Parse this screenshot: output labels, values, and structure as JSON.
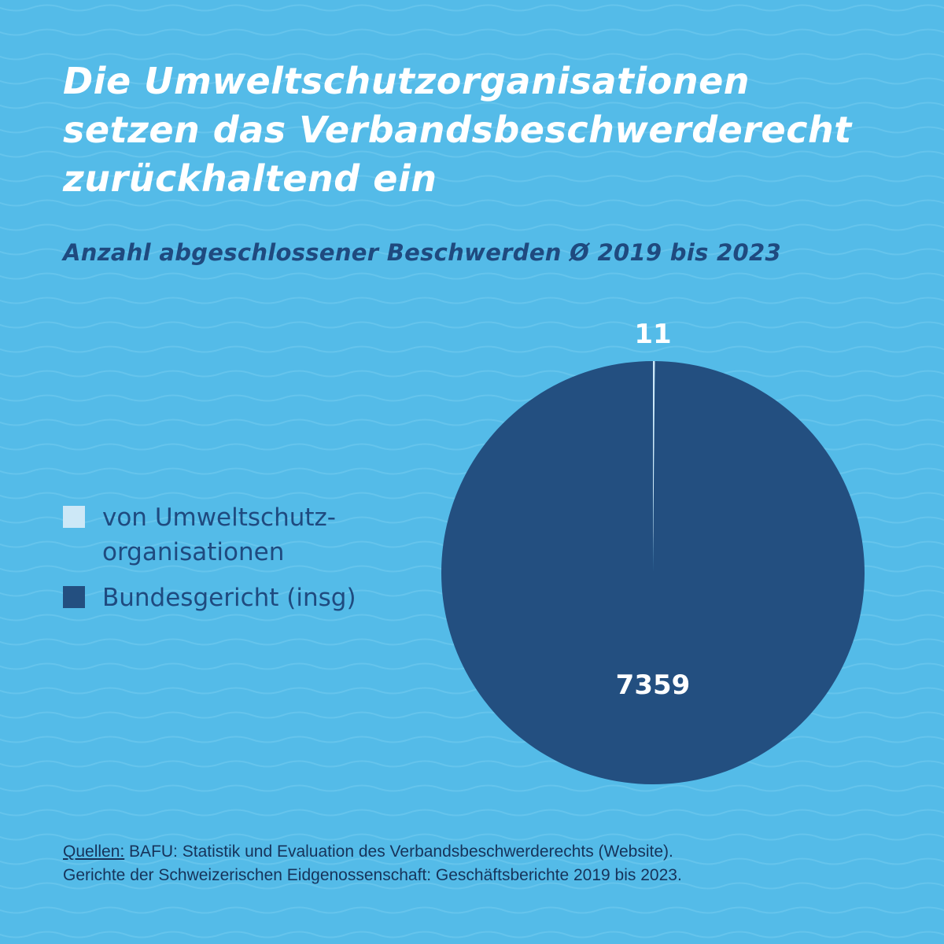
{
  "title_lines": [
    "Die Umweltschutzorganisationen",
    "setzen das Verbandsbeschwerderecht",
    "zurückhaltend ein"
  ],
  "subtitle": "Anzahl abgeschlossener Beschwerden Ø 2019 bis 2023",
  "colors": {
    "background": "#54bbe8",
    "wave": "#6cc7ee",
    "dark_blue": "#234f80",
    "light_blue": "#cde8f7",
    "title_text": "#ffffff",
    "subtitle_text": "#1f4a7f"
  },
  "legend": [
    {
      "label_lines": [
        "von Umweltschutz-",
        "organisationen"
      ],
      "color": "#cde8f7"
    },
    {
      "label_lines": [
        "Bundesgericht (insg)"
      ],
      "color": "#234f80"
    }
  ],
  "sources": {
    "lead": "Quellen:",
    "line1_rest": " BAFU: Statistik und Evaluation des Verbandsbeschwerderechts (Website).",
    "line2": "Gerichte der Schweizerischen Eidgenossenschaft: Geschäftsberichte 2019 bis 2023."
  },
  "chart_data": {
    "type": "pie",
    "title": "Anzahl abgeschlossener Beschwerden Ø 2019 bis 2023",
    "slices": [
      {
        "label": "von Umweltschutzorganisationen",
        "value": 11,
        "color": "#cde8f7",
        "data_label": "11"
      },
      {
        "label": "Bundesgericht (insg)",
        "value": 7359,
        "color": "#234f80",
        "data_label": "7359"
      }
    ],
    "legend_position": "left"
  }
}
